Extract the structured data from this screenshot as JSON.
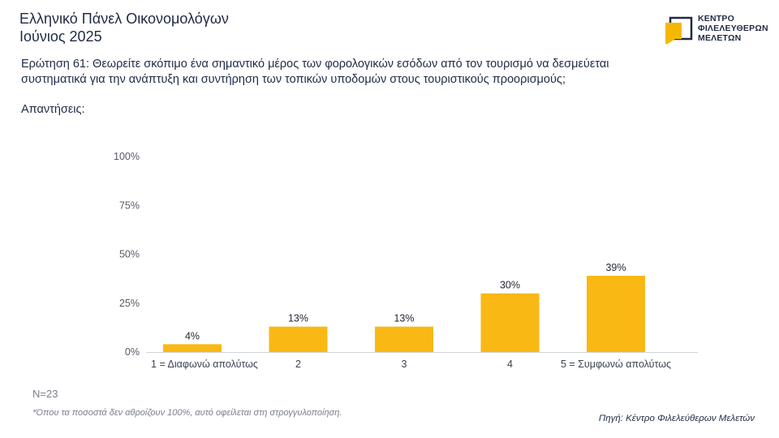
{
  "header": {
    "title_line1": "Ελληνικό Πάνελ Οικονομολόγων",
    "title_line2": "Ιούνιος 2025"
  },
  "logo": {
    "line1": "ΚΕΝΤΡΟ",
    "line2": "ΦΙΛΕΛΕΥΘΕΡΩΝ",
    "line3": "ΜΕΛΕΤΩΝ",
    "icon": "kefim-logo-icon",
    "mark_color": "#F5B800"
  },
  "question": {
    "line1": "Ερώτηση 61: Θεωρείτε σκόπιμο ένα σημαντικό μέρος των φορολογικών εσόδων από τον τουρισμό να δεσμεύεται",
    "line2": "συστηματικά για την ανάπτυξη και συντήρηση των τοπικών υποδομών στους τουριστικούς προορισμούς;"
  },
  "answers_label": "Απαντήσεις:",
  "chart_data": {
    "type": "bar",
    "categories": [
      "1 = Διαφωνώ απολύτως",
      "2",
      "3",
      "4",
      "5 = Συμφωνώ απολύτως"
    ],
    "values": [
      4,
      13,
      13,
      30,
      39
    ],
    "value_labels": [
      "4%",
      "13%",
      "13%",
      "30%",
      "39%"
    ],
    "ylim": [
      0,
      100
    ],
    "yticks": [
      0,
      25,
      50,
      75,
      100
    ],
    "ytick_labels": [
      "0%",
      "25%",
      "50%",
      "75%",
      "100%"
    ],
    "bar_color": "#F9B814",
    "grid": false
  },
  "n_label": "N=23",
  "footnote": "*Όπου τα ποσοστά δεν αθροίζουν 100%, αυτό οφείλεται στη στρογγυλοποίηση.",
  "source": "Πηγή: Κέντρο Φιλελεύθερων Μελετών"
}
